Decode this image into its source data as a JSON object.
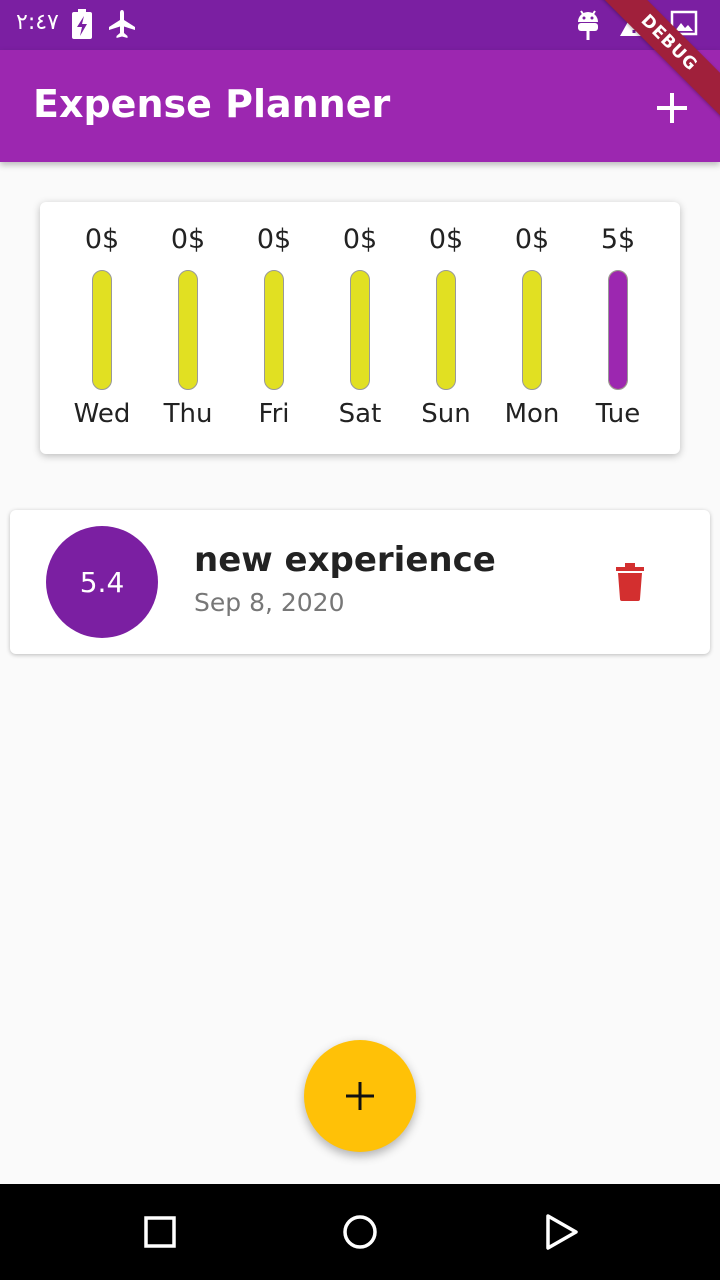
{
  "status_bar": {
    "time": "٢:٤٧",
    "left_icons": [
      "battery-charging-icon",
      "airplane-mode-icon"
    ],
    "right_icons": [
      "android-debug-icon",
      "warning-icon",
      "image-icon"
    ]
  },
  "debug_banner": {
    "label": "DEBUG"
  },
  "app_bar": {
    "title": "Expense Planner",
    "action_icon": "add-icon",
    "background": "#9c27b0"
  },
  "chart": {
    "bar_color": "#e1e022",
    "fill_color": "#9c27b0",
    "days": [
      {
        "label": "Wed",
        "amount": "0$",
        "fill_fraction": 0
      },
      {
        "label": "Thu",
        "amount": "0$",
        "fill_fraction": 0
      },
      {
        "label": "Fri",
        "amount": "0$",
        "fill_fraction": 0
      },
      {
        "label": "Sat",
        "amount": "0$",
        "fill_fraction": 0
      },
      {
        "label": "Sun",
        "amount": "0$",
        "fill_fraction": 0
      },
      {
        "label": "Mon",
        "amount": "0$",
        "fill_fraction": 0
      },
      {
        "label": "Tue",
        "amount": "5$",
        "fill_fraction": 1
      }
    ]
  },
  "transactions": [
    {
      "amount": "5.4",
      "title": "new experience",
      "date": "Sep 8, 2020",
      "delete_icon": "trash-icon",
      "delete_color": "#d32f2f"
    }
  ],
  "fab": {
    "icon": "add-icon",
    "color": "#ffc107"
  },
  "nav_bar": {
    "buttons": [
      "recents-square-icon",
      "home-circle-icon",
      "back-triangle-icon"
    ]
  }
}
